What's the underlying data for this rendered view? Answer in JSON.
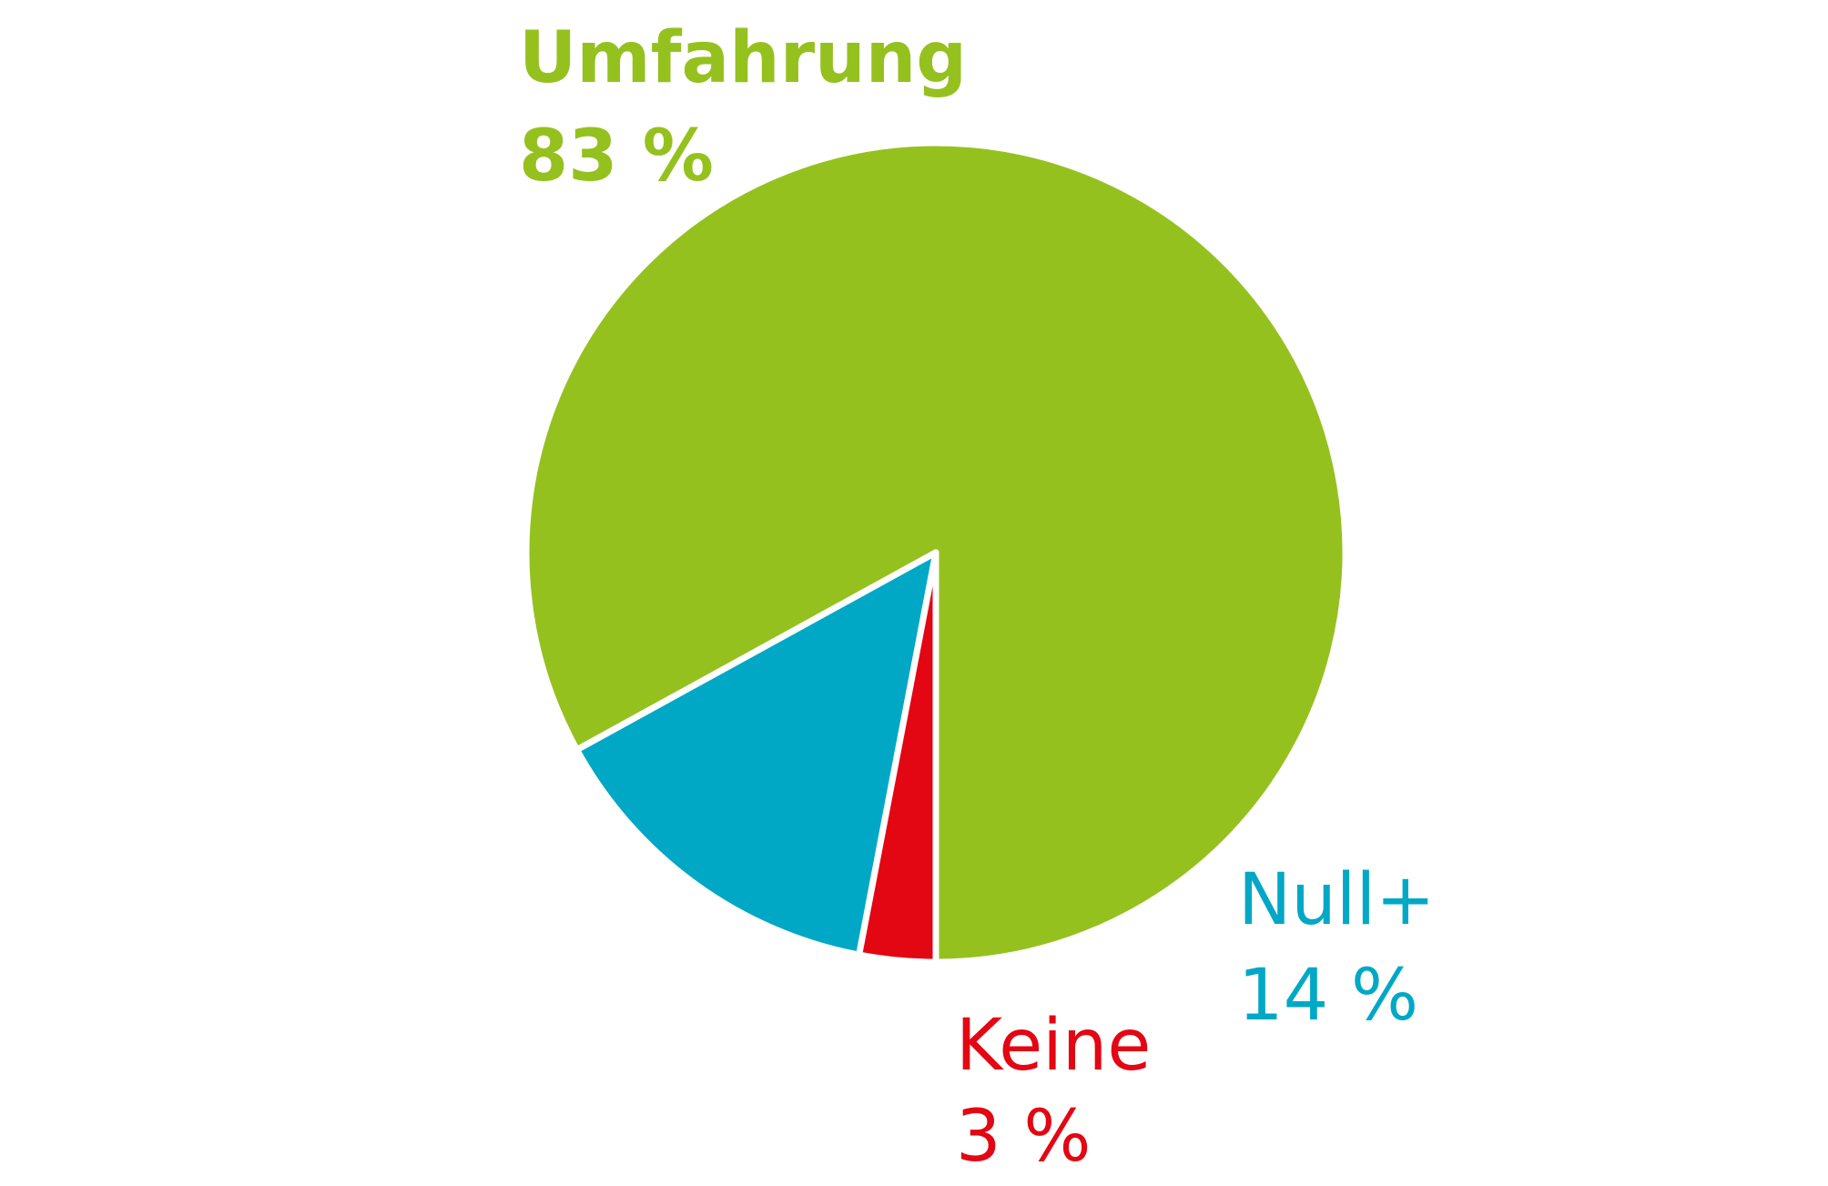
{
  "chart_data": {
    "type": "pie",
    "slices": [
      {
        "label": "Umfahrung",
        "value": 83,
        "value_label": "83 %",
        "color": "#95c11f",
        "label_style": "bold"
      },
      {
        "label": "Null+",
        "value": 14,
        "value_label": "14 %",
        "color": "#00a8c6",
        "label_style": "normal"
      },
      {
        "label": "Keine",
        "value": 3,
        "value_label": "3 %",
        "color": "#e30613",
        "label_style": "normal"
      }
    ],
    "start": "6 o'clock",
    "direction": "counterclockwise",
    "separator_color": "#ffffff"
  }
}
